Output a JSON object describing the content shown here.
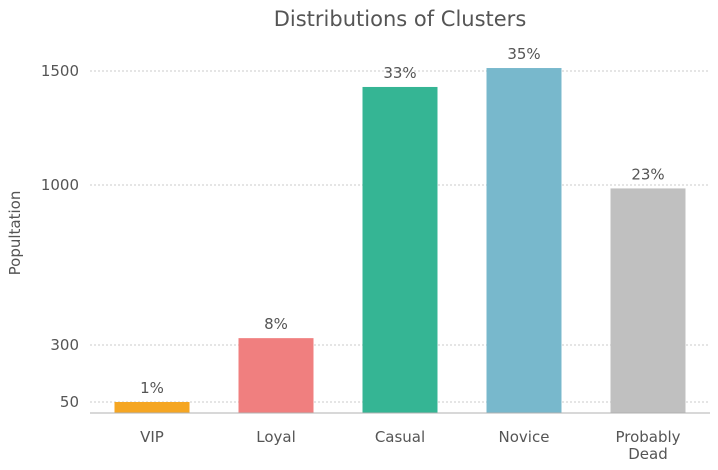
{
  "chart_data": {
    "type": "bar",
    "title": "Distributions of Clusters",
    "xlabel": "",
    "ylabel": "Popultation",
    "categories": [
      "VIP",
      "Loyal",
      "Casual",
      "Novice",
      "Probably Dead"
    ],
    "values": [
      50,
      330,
      1430,
      1513,
      985
    ],
    "data_labels": [
      "1%",
      "8%",
      "33%",
      "35%",
      "23%"
    ],
    "colors": [
      "#f5a623",
      "#f07f7f",
      "#35b594",
      "#78b8cc",
      "#c0c0c0"
    ],
    "yticks": [
      50,
      300,
      1000,
      1500
    ],
    "ylim": [
      0,
      1500
    ],
    "grid": true,
    "legend": "none"
  }
}
